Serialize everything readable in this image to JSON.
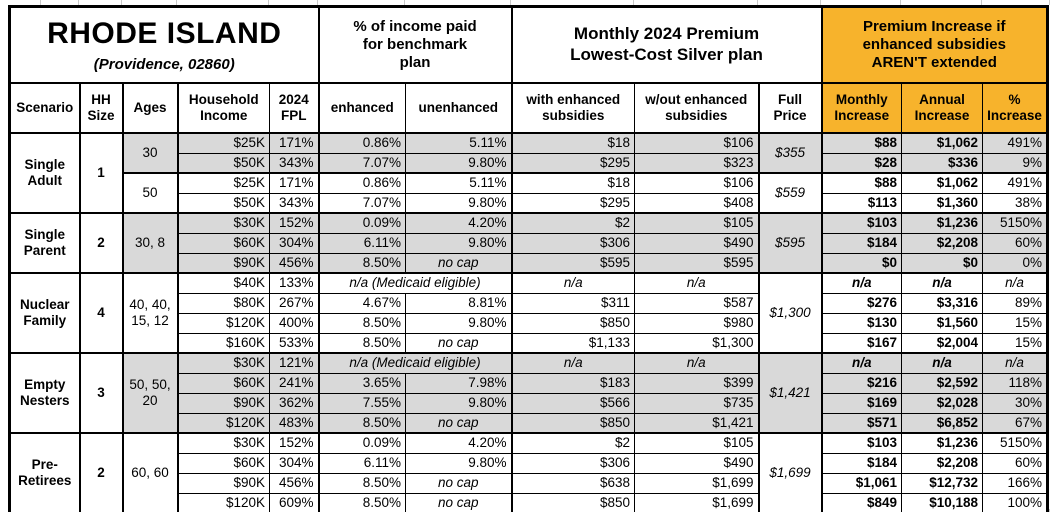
{
  "title": {
    "state": "RHODE ISLAND",
    "location": "(Providence, 02860)"
  },
  "colors": {
    "header_orange": "#F7B32C",
    "shaded_row_gray": "#D9D9D9"
  },
  "headers": {
    "scenario": "Scenario",
    "hh_size": "HH Size",
    "ages": "Ages",
    "household_income": "Household Income",
    "fpl": "2024 FPL",
    "pct_income_group": "% of income paid for benchmark plan",
    "enhanced": "enhanced",
    "unenhanced": "unenhanced",
    "premium_group": "Monthly 2024 Premium Lowest-Cost Silver plan",
    "with_sub": "with enhanced subsidies",
    "wo_sub": "w/out enhanced subsidies",
    "full_price": "Full Price",
    "increase_group": "Premium Increase if enhanced subsidies AREN'T extended",
    "monthly_increase": "Monthly Increase",
    "annual_increase": "Annual Increase",
    "pct_increase": "% Increase"
  },
  "scenarios": [
    {
      "label": "Single Adult",
      "hh": "1",
      "blocks": [
        {
          "ages": "30",
          "full": "$355"
        },
        {
          "ages": "50",
          "full": "$559"
        }
      ]
    },
    {
      "label": "Single Parent",
      "hh": "2",
      "ages": "30, 8",
      "full": "$595"
    },
    {
      "label": "Nuclear Family",
      "hh": "4",
      "ages": "40, 40, 15, 12",
      "full": "$1,300"
    },
    {
      "label": "Empty Nesters",
      "hh": "3",
      "ages": "50, 50, 20",
      "full": "$1,421"
    },
    {
      "label": "Pre-Retirees",
      "hh": "2",
      "ages": "60, 60",
      "full": "$1,699"
    }
  ],
  "rows": [
    {
      "income": "$25K",
      "fpl": "171%",
      "enh": "0.86%",
      "unenh": "5.11%",
      "with_sub": "$18",
      "wo_sub": "$106",
      "monthly": "$88",
      "annual": "$1,062",
      "pct": "491%"
    },
    {
      "income": "$50K",
      "fpl": "343%",
      "enh": "7.07%",
      "unenh": "9.80%",
      "with_sub": "$295",
      "wo_sub": "$323",
      "monthly": "$28",
      "annual": "$336",
      "pct": "9%"
    },
    {
      "income": "$25K",
      "fpl": "171%",
      "enh": "0.86%",
      "unenh": "5.11%",
      "with_sub": "$18",
      "wo_sub": "$106",
      "monthly": "$88",
      "annual": "$1,062",
      "pct": "491%"
    },
    {
      "income": "$50K",
      "fpl": "343%",
      "enh": "7.07%",
      "unenh": "9.80%",
      "with_sub": "$295",
      "wo_sub": "$408",
      "monthly": "$113",
      "annual": "$1,360",
      "pct": "38%"
    },
    {
      "income": "$30K",
      "fpl": "152%",
      "enh": "0.09%",
      "unenh": "4.20%",
      "with_sub": "$2",
      "wo_sub": "$105",
      "monthly": "$103",
      "annual": "$1,236",
      "pct": "5150%"
    },
    {
      "income": "$60K",
      "fpl": "304%",
      "enh": "6.11%",
      "unenh": "9.80%",
      "with_sub": "$306",
      "wo_sub": "$490",
      "monthly": "$184",
      "annual": "$2,208",
      "pct": "60%"
    },
    {
      "income": "$90K",
      "fpl": "456%",
      "enh": "8.50%",
      "unenh": "no cap",
      "with_sub": "$595",
      "wo_sub": "$595",
      "monthly": "$0",
      "annual": "$0",
      "pct": "0%"
    },
    {
      "income": "$40K",
      "fpl": "133%",
      "medicaid": "n/a (Medicaid eligible)",
      "with_sub": "n/a",
      "wo_sub": "n/a",
      "monthly": "n/a",
      "annual": "n/a",
      "pct": "n/a"
    },
    {
      "income": "$80K",
      "fpl": "267%",
      "enh": "4.67%",
      "unenh": "8.81%",
      "with_sub": "$311",
      "wo_sub": "$587",
      "monthly": "$276",
      "annual": "$3,316",
      "pct": "89%"
    },
    {
      "income": "$120K",
      "fpl": "400%",
      "enh": "8.50%",
      "unenh": "9.80%",
      "with_sub": "$850",
      "wo_sub": "$980",
      "monthly": "$130",
      "annual": "$1,560",
      "pct": "15%"
    },
    {
      "income": "$160K",
      "fpl": "533%",
      "enh": "8.50%",
      "unenh": "no cap",
      "with_sub": "$1,133",
      "wo_sub": "$1,300",
      "monthly": "$167",
      "annual": "$2,004",
      "pct": "15%"
    },
    {
      "income": "$30K",
      "fpl": "121%",
      "medicaid": "n/a (Medicaid eligible)",
      "with_sub": "n/a",
      "wo_sub": "n/a",
      "monthly": "n/a",
      "annual": "n/a",
      "pct": "n/a"
    },
    {
      "income": "$60K",
      "fpl": "241%",
      "enh": "3.65%",
      "unenh": "7.98%",
      "with_sub": "$183",
      "wo_sub": "$399",
      "monthly": "$216",
      "annual": "$2,592",
      "pct": "118%"
    },
    {
      "income": "$90K",
      "fpl": "362%",
      "enh": "7.55%",
      "unenh": "9.80%",
      "with_sub": "$566",
      "wo_sub": "$735",
      "monthly": "$169",
      "annual": "$2,028",
      "pct": "30%"
    },
    {
      "income": "$120K",
      "fpl": "483%",
      "enh": "8.50%",
      "unenh": "no cap",
      "with_sub": "$850",
      "wo_sub": "$1,421",
      "monthly": "$571",
      "annual": "$6,852",
      "pct": "67%"
    },
    {
      "income": "$30K",
      "fpl": "152%",
      "enh": "0.09%",
      "unenh": "4.20%",
      "with_sub": "$2",
      "wo_sub": "$105",
      "monthly": "$103",
      "annual": "$1,236",
      "pct": "5150%"
    },
    {
      "income": "$60K",
      "fpl": "304%",
      "enh": "6.11%",
      "unenh": "9.80%",
      "with_sub": "$306",
      "wo_sub": "$490",
      "monthly": "$184",
      "annual": "$2,208",
      "pct": "60%"
    },
    {
      "income": "$90K",
      "fpl": "456%",
      "enh": "8.50%",
      "unenh": "no cap",
      "with_sub": "$638",
      "wo_sub": "$1,699",
      "monthly": "$1,061",
      "annual": "$12,732",
      "pct": "166%"
    },
    {
      "income": "$120K",
      "fpl": "609%",
      "enh": "8.50%",
      "unenh": "no cap",
      "with_sub": "$850",
      "wo_sub": "$1,699",
      "monthly": "$849",
      "annual": "$10,188",
      "pct": "100%"
    }
  ]
}
